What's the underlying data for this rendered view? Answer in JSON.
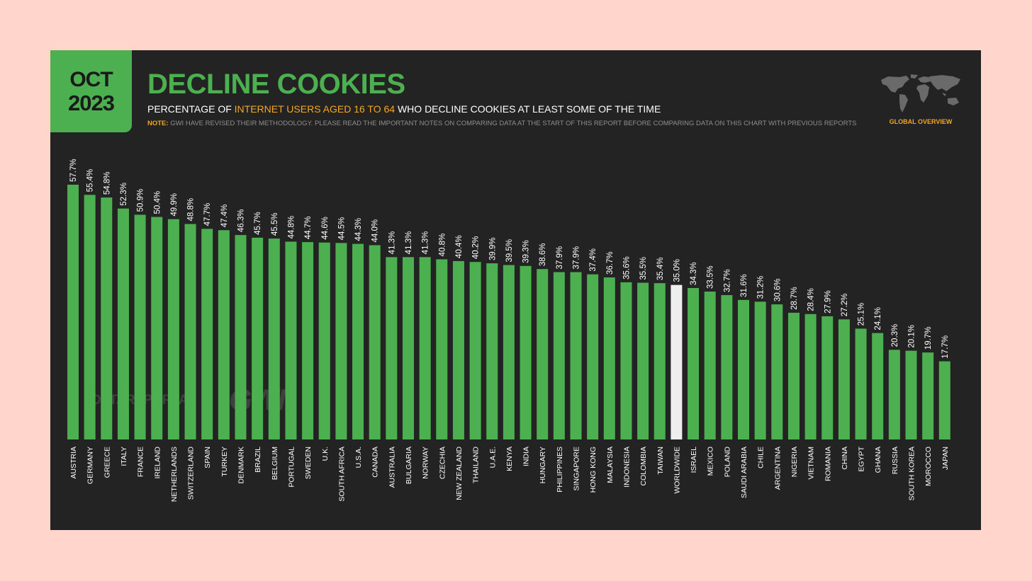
{
  "header": {
    "month": "OCT",
    "year": "2023",
    "title": "DECLINE COOKIES",
    "subtitle_pre": "PERCENTAGE OF ",
    "subtitle_highlight": "INTERNET USERS AGED 16 TO 64",
    "subtitle_post": " WHO DECLINE COOKIES AT LEAST SOME OF THE TIME",
    "note_label": "NOTE:",
    "note_text": " GWI HAVE REVISED THEIR METHODOLOGY. PLEASE READ THE IMPORTANT NOTES ON COMPARING DATA AT THE START OF THIS REPORT BEFORE COMPARING DATA ON THIS CHART WITH PREVIOUS REPORTS",
    "badge": "GLOBAL OVERVIEW",
    "map_icon": "world-map-icon"
  },
  "watermarks": {
    "datareportal": "DATAREPORTAL",
    "gwi": "GWI."
  },
  "colors": {
    "background": "#ffd5cc",
    "panel": "#232323",
    "accent": "#4caf50",
    "highlight": "#f5a623",
    "worldwide_bar": "#eeeeee"
  },
  "chart_data": {
    "type": "bar",
    "title": "DECLINE COOKIES",
    "categories": [
      "AUSTRIA",
      "GERMANY",
      "GREECE",
      "ITALY",
      "FRANCE",
      "IRELAND",
      "NETHERLANDS",
      "SWITZERLAND",
      "SPAIN",
      "TURKEY",
      "DENMARK",
      "BRAZIL",
      "BELGIUM",
      "PORTUGAL",
      "SWEDEN",
      "U.K.",
      "SOUTH AFRICA",
      "U.S.A.",
      "CANADA",
      "AUSTRALIA",
      "BULGARIA",
      "NORWAY",
      "CZECHIA",
      "NEW ZEALAND",
      "THAILAND",
      "U.A.E.",
      "KENYA",
      "INDIA",
      "HUNGARY",
      "PHILIPPINES",
      "SINGAPORE",
      "HONG KONG",
      "MALAYSIA",
      "INDONESIA",
      "COLOMBIA",
      "TAIWAN",
      "WORLDWIDE",
      "ISRAEL",
      "MEXICO",
      "POLAND",
      "SAUDI ARABIA",
      "CHILE",
      "ARGENTINA",
      "NIGERIA",
      "VIETNAM",
      "ROMANIA",
      "CHINA",
      "EGYPT",
      "GHANA",
      "RUSSIA",
      "SOUTH KOREA",
      "MOROCCO",
      "JAPAN"
    ],
    "values": [
      57.7,
      55.4,
      54.8,
      52.3,
      50.9,
      50.4,
      49.9,
      48.8,
      47.7,
      47.4,
      46.3,
      45.7,
      45.5,
      44.8,
      44.7,
      44.6,
      44.5,
      44.3,
      44.0,
      41.3,
      41.3,
      41.3,
      40.8,
      40.4,
      40.2,
      39.9,
      39.5,
      39.3,
      38.6,
      37.9,
      37.9,
      37.4,
      36.7,
      35.6,
      35.5,
      35.4,
      35.0,
      34.3,
      33.5,
      32.7,
      31.6,
      31.2,
      30.6,
      28.7,
      28.4,
      27.9,
      27.2,
      25.1,
      24.1,
      20.3,
      20.1,
      19.7,
      17.7
    ],
    "value_labels": [
      "57.7%",
      "55.4%",
      "54.8%",
      "52.3%",
      "50.9%",
      "50.4%",
      "49.9%",
      "48.8%",
      "47.7%",
      "47.4%",
      "46.3%",
      "45.7%",
      "45.5%",
      "44.8%",
      "44.7%",
      "44.6%",
      "44.5%",
      "44.3%",
      "44.0%",
      "41.3%",
      "41.3%",
      "41.3%",
      "40.8%",
      "40.4%",
      "40.2%",
      "39.9%",
      "39.5%",
      "39.3%",
      "38.6%",
      "37.9%",
      "37.9%",
      "37.4%",
      "36.7%",
      "35.6%",
      "35.5%",
      "35.4%",
      "35.0%",
      "34.3%",
      "33.5%",
      "32.7%",
      "31.6%",
      "31.2%",
      "30.6%",
      "28.7%",
      "28.4%",
      "27.9%",
      "27.2%",
      "25.1%",
      "24.1%",
      "20.3%",
      "20.1%",
      "19.7%",
      "17.7%"
    ],
    "highlight_category": "WORLDWIDE",
    "ylim": [
      0,
      57.7
    ],
    "grid": false,
    "legend": "none"
  }
}
